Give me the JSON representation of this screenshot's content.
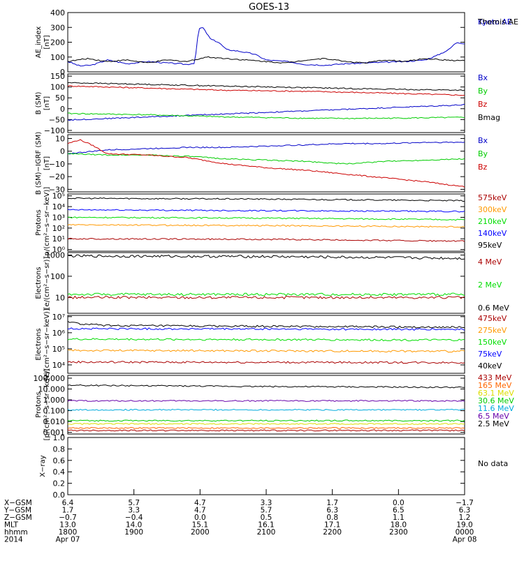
{
  "title": "GOES-13",
  "chart_data": [
    {
      "type": "line",
      "id": "ae",
      "ylabel": "AE_index\n[nT]",
      "ylim": [
        0,
        400
      ],
      "ticks": [
        0,
        100,
        200,
        300,
        400
      ],
      "tick_labels": [
        "0",
        "100",
        "200",
        "300",
        "400"
      ],
      "series": [
        {
          "name": "Kyoto AE",
          "color": "#0000c8",
          "x": [
            0,
            0.03,
            0.06,
            0.1,
            0.15,
            0.2,
            0.25,
            0.28,
            0.3,
            0.32,
            0.33,
            0.34,
            0.36,
            0.38,
            0.4,
            0.43,
            0.47,
            0.5,
            0.55,
            0.6,
            0.65,
            0.7,
            0.75,
            0.8,
            0.85,
            0.9,
            0.93,
            0.96,
            0.98,
            1
          ],
          "y": [
            70,
            40,
            45,
            80,
            55,
            70,
            60,
            55,
            50,
            60,
            290,
            300,
            220,
            200,
            150,
            140,
            120,
            80,
            70,
            50,
            45,
            55,
            60,
            65,
            70,
            80,
            110,
            150,
            200,
            190
          ]
        },
        {
          "name": "Themis AE",
          "color": "#000000",
          "x": [
            0,
            0.05,
            0.1,
            0.15,
            0.2,
            0.25,
            0.3,
            0.35,
            0.4,
            0.45,
            0.5,
            0.55,
            0.6,
            0.65,
            0.7,
            0.75,
            0.8,
            0.85,
            0.9,
            0.95,
            1
          ],
          "y": [
            70,
            90,
            70,
            80,
            60,
            80,
            70,
            100,
            90,
            80,
            70,
            60,
            80,
            90,
            70,
            60,
            80,
            70,
            90,
            80,
            75
          ]
        }
      ]
    },
    {
      "type": "line",
      "id": "bsm",
      "ylabel": "B (SM)\n[nT]",
      "ylim": [
        -110,
        160
      ],
      "ticks": [
        -100,
        -50,
        0,
        50,
        100,
        150
      ],
      "tick_labels": [
        "−100",
        "−50",
        "0",
        "50",
        "100",
        "150"
      ],
      "series": [
        {
          "name": "Bx",
          "color": "#0000c8",
          "x": [
            0,
            1
          ],
          "y": [
            -52,
            18
          ]
        },
        {
          "name": "By",
          "color": "#00cc00",
          "x": [
            0,
            0.2,
            0.4,
            0.6,
            0.7,
            0.8,
            0.9,
            1
          ],
          "y": [
            -22,
            -28,
            -38,
            -44,
            -45,
            -44,
            -42,
            -40
          ]
        },
        {
          "name": "Bz",
          "color": "#cc0000",
          "x": [
            0,
            0.2,
            0.4,
            0.6,
            0.8,
            1
          ],
          "y": [
            105,
            95,
            85,
            80,
            72,
            62
          ]
        },
        {
          "name": "Bmag",
          "color": "#000000",
          "x": [
            0,
            0.2,
            0.4,
            0.6,
            0.8,
            1
          ],
          "y": [
            120,
            112,
            104,
            97,
            90,
            85
          ]
        }
      ]
    },
    {
      "type": "line",
      "id": "bigrf",
      "ylabel": "B (SM)−IGRF (SM)\n[nT]",
      "ylim": [
        -32,
        13
      ],
      "ticks": [
        -30,
        -20,
        -10,
        0,
        10
      ],
      "tick_labels": [
        "−30",
        "−20",
        "−10",
        "0",
        "10"
      ],
      "series": [
        {
          "name": "Bx",
          "color": "#0000c8",
          "x": [
            0,
            0.1,
            0.2,
            0.3,
            0.4,
            0.5,
            0.6,
            0.7,
            0.8,
            0.9,
            1
          ],
          "y": [
            -2,
            1,
            2,
            3,
            3,
            4,
            5,
            6,
            6,
            7,
            7
          ]
        },
        {
          "name": "By",
          "color": "#00cc00",
          "x": [
            0,
            0.1,
            0.2,
            0.3,
            0.4,
            0.5,
            0.6,
            0.7,
            0.8,
            0.9,
            1
          ],
          "y": [
            -2,
            -3,
            -3,
            -4,
            -6,
            -7,
            -8,
            -10,
            -8,
            -7,
            -6
          ]
        },
        {
          "name": "Bz",
          "color": "#cc0000",
          "x": [
            0,
            0.03,
            0.06,
            0.1,
            0.2,
            0.3,
            0.4,
            0.5,
            0.6,
            0.7,
            0.8,
            0.9,
            1
          ],
          "y": [
            6,
            9,
            5,
            -2,
            -3,
            -5,
            -10,
            -13,
            -15,
            -18,
            -21,
            -24,
            -28
          ]
        }
      ]
    },
    {
      "type": "line",
      "id": "protons_low",
      "log": true,
      "ylabel": "Protons\n[p/(cm²−s−sr−keV)]",
      "ylim": [
        0.7,
        150000
      ],
      "ticks": [
        1,
        10,
        100,
        1000,
        10000,
        100000
      ],
      "tick_labels": [
        "10⁰",
        "10¹",
        "10²",
        "10³",
        "10⁴",
        "10⁵"
      ],
      "series": [
        {
          "name": "575keV",
          "color": "#aa0000",
          "x": [
            0,
            0.5,
            1
          ],
          "y": [
            10,
            9,
            6
          ]
        },
        {
          "name": "300keV",
          "color": "#ff9900",
          "x": [
            0,
            0.5,
            1
          ],
          "y": [
            200,
            170,
            130
          ]
        },
        {
          "name": "210keV",
          "color": "#00dd00",
          "x": [
            0,
            0.5,
            1
          ],
          "y": [
            1000,
            850,
            600
          ]
        },
        {
          "name": "140keV",
          "color": "#0000ff",
          "x": [
            0,
            0.5,
            1
          ],
          "y": [
            5000,
            4200,
            3500
          ]
        },
        {
          "name": "95keV",
          "color": "#000000",
          "x": [
            0,
            0.5,
            1
          ],
          "y": [
            60000,
            50000,
            35000
          ]
        }
      ]
    },
    {
      "type": "line",
      "id": "electrons_mev",
      "log": true,
      "ylabel": "Electrons\n[e/(cm²−s−sr)]",
      "ylim": [
        1.8,
        1300
      ],
      "ticks": [
        10,
        100,
        1000
      ],
      "tick_labels": [
        "10",
        "100",
        "1000"
      ],
      "series": [
        {
          "name": "4 MeV",
          "color": "#aa0000",
          "x": [
            0,
            1
          ],
          "y": [
            10,
            10
          ]
        },
        {
          "name": "2 MeV",
          "color": "#00dd00",
          "x": [
            0,
            1
          ],
          "y": [
            14,
            14
          ]
        },
        {
          "name": "0.6 MeV",
          "color": "#000000",
          "x": [
            0,
            0.5,
            1
          ],
          "y": [
            900,
            850,
            700
          ]
        }
      ]
    },
    {
      "type": "line",
      "id": "electrons_kev",
      "log": true,
      "ylabel": "Electrons\n[e/(cm²−s−sr−keV)]",
      "ylim": [
        3000,
        12000000
      ],
      "ticks": [
        10000,
        100000,
        1000000,
        10000000
      ],
      "tick_labels": [
        "10⁴",
        "10⁵",
        "10⁶",
        "10⁷"
      ],
      "series": [
        {
          "name": "475keV",
          "color": "#aa0000",
          "x": [
            0,
            1
          ],
          "y": [
            15000,
            14000
          ]
        },
        {
          "name": "275keV",
          "color": "#ff9900",
          "x": [
            0,
            1
          ],
          "y": [
            80000,
            70000
          ]
        },
        {
          "name": "150keV",
          "color": "#00dd00",
          "x": [
            0,
            1
          ],
          "y": [
            400000,
            350000
          ]
        },
        {
          "name": "75keV",
          "color": "#0000ff",
          "x": [
            0,
            1
          ],
          "y": [
            1800000,
            1600000
          ]
        },
        {
          "name": "40keV",
          "color": "#000000",
          "x": [
            0,
            0.03,
            0.1,
            0.3,
            0.5,
            0.7,
            1
          ],
          "y": [
            5000000,
            3500000,
            2800000,
            2600000,
            2500000,
            2400000,
            2200000
          ]
        }
      ]
    },
    {
      "type": "line",
      "id": "protons_mev",
      "log": true,
      "ylabel": "Protons\n[p/(cm²−s−sr−keV)]",
      "ylim": [
        0.0007,
        180
      ],
      "ticks": [
        0.001,
        0.01,
        0.1,
        1,
        10,
        100
      ],
      "tick_labels": [
        "0.001",
        "0.010",
        "0.100",
        "1.000",
        "10.000",
        "100.000"
      ],
      "series": [
        {
          "name": "433 MeV",
          "color": "#aa0000",
          "x": [
            0,
            1
          ],
          "y": [
            0.0015,
            0.0015
          ]
        },
        {
          "name": "165 MeV",
          "color": "#ff6600",
          "x": [
            0,
            1
          ],
          "y": [
            0.0025,
            0.0025
          ]
        },
        {
          "name": "63.1 MeV",
          "color": "#dddd00",
          "x": [
            0,
            1
          ],
          "y": [
            0.006,
            0.006
          ]
        },
        {
          "name": "30.6 MeV",
          "color": "#00cc00",
          "x": [
            0,
            1
          ],
          "y": [
            0.012,
            0.012
          ]
        },
        {
          "name": "11.6 MeV",
          "color": "#00aadd",
          "x": [
            0,
            1
          ],
          "y": [
            0.12,
            0.12
          ]
        },
        {
          "name": "6.5 MeV",
          "color": "#6600aa",
          "x": [
            0,
            1
          ],
          "y": [
            0.8,
            0.8
          ]
        },
        {
          "name": "2.5 MeV",
          "color": "#000000",
          "x": [
            0,
            0.5,
            1
          ],
          "y": [
            22,
            17,
            14
          ]
        }
      ]
    },
    {
      "type": "line",
      "id": "xray",
      "ylabel": "X−ray",
      "ylim": [
        0,
        1.0
      ],
      "ticks": [
        0,
        0.2,
        0.4,
        0.6,
        0.8,
        1.0
      ],
      "tick_labels": [
        "0.0",
        "0.2",
        "0.4",
        "0.6",
        "0.8",
        "1.0"
      ],
      "series": [],
      "note": "No data"
    }
  ],
  "xaxis": {
    "rows": [
      {
        "label": "X−GSM",
        "values": [
          "6.4",
          "5.7",
          "4.7",
          "3.3",
          "1.7",
          "0.0",
          "−1.7"
        ]
      },
      {
        "label": "Y−GSM",
        "values": [
          "1.7",
          "3.3",
          "4.7",
          "5.7",
          "6.3",
          "6.5",
          "6.3"
        ]
      },
      {
        "label": "Z−GSM",
        "values": [
          "−0.7",
          "−0.4",
          "0.0",
          "0.5",
          "0.8",
          "1.1",
          "1.2"
        ]
      },
      {
        "label": "MLT",
        "values": [
          "13.0",
          "14.0",
          "15.1",
          "16.1",
          "17.1",
          "18.0",
          "19.0"
        ]
      },
      {
        "label": "hhmm",
        "values": [
          "1800",
          "1900",
          "2000",
          "2100",
          "2200",
          "2300",
          "0000"
        ]
      },
      {
        "label": "2014",
        "values": [
          "Apr 07",
          "",
          "",
          "",
          "",
          "",
          "Apr 08"
        ]
      }
    ]
  }
}
